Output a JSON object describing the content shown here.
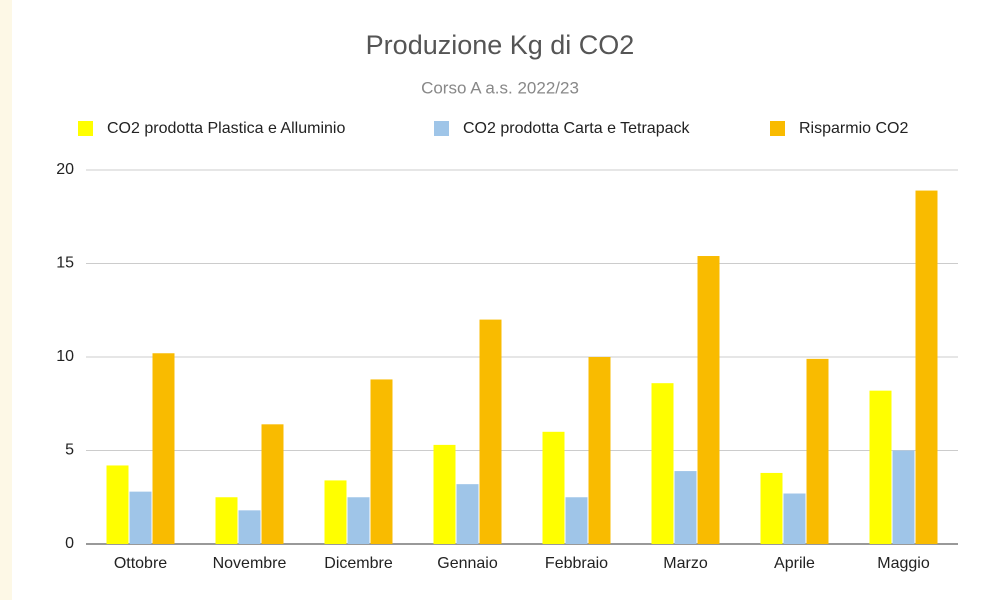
{
  "chart_data": {
    "type": "bar",
    "title": "Produzione Kg di CO2",
    "subtitle": "Corso A a.s. 2022/23",
    "categories": [
      "Ottobre",
      "Novembre",
      "Dicembre",
      "Gennaio",
      "Febbraio",
      "Marzo",
      "Aprile",
      "Maggio"
    ],
    "series": [
      {
        "name": "CO2 prodotta Plastica e Alluminio",
        "color": "#ffff00",
        "values": [
          4.2,
          2.5,
          3.4,
          5.3,
          6.0,
          8.6,
          3.8,
          8.2
        ]
      },
      {
        "name": "CO2 prodotta Carta e Tetrapack",
        "color": "#9fc5e8",
        "values": [
          2.8,
          1.8,
          2.5,
          3.2,
          2.5,
          3.9,
          2.7,
          5.0
        ]
      },
      {
        "name": "Risparmio CO2",
        "color": "#f9bb00",
        "values": [
          10.2,
          6.4,
          8.8,
          12.0,
          10.0,
          15.4,
          9.9,
          18.9
        ]
      }
    ],
    "ylim": [
      0,
      20
    ],
    "yticks": [
      0,
      5,
      10,
      15,
      20
    ],
    "grid": true,
    "legend": "top"
  }
}
